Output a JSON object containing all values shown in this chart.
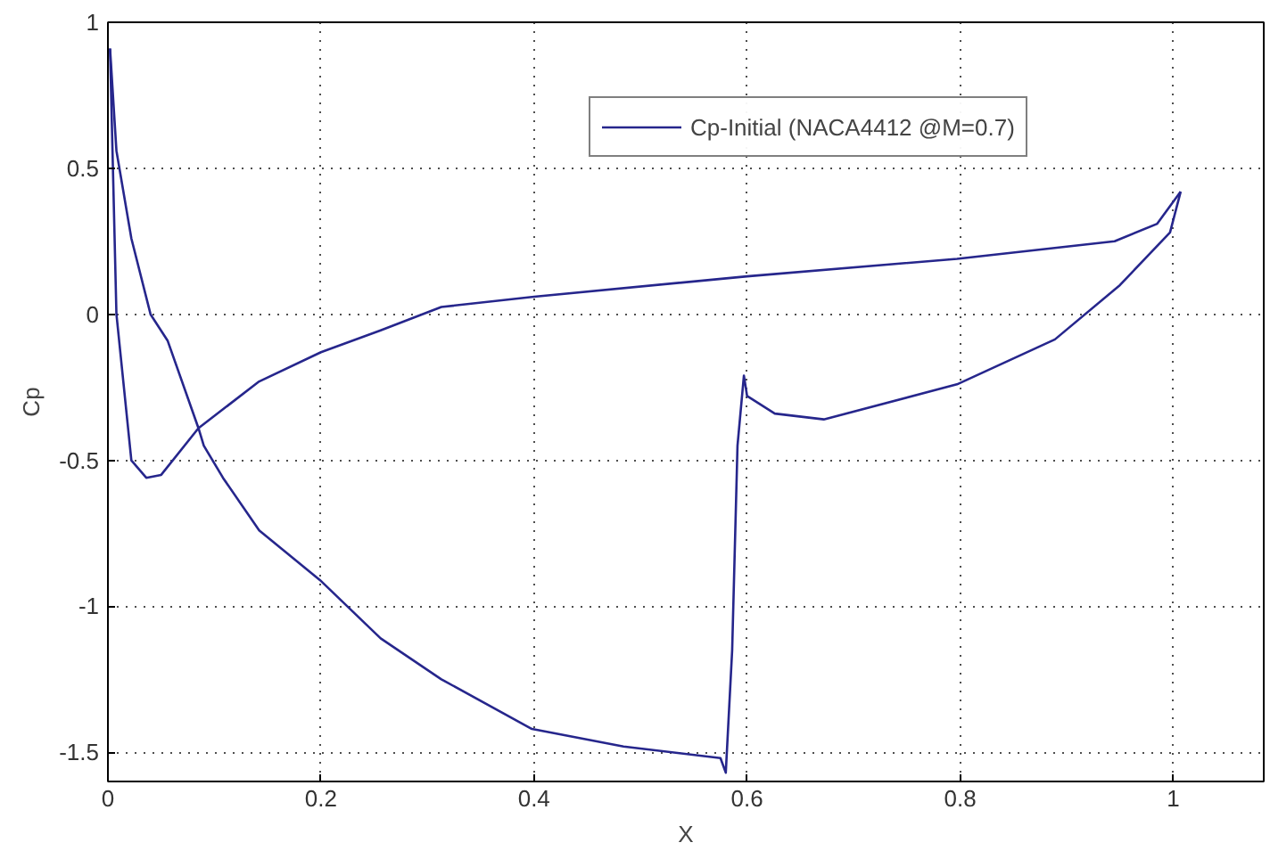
{
  "chart_data": {
    "type": "line",
    "xlabel": "X",
    "ylabel": "Cp",
    "xlim": [
      0,
      1.085
    ],
    "ylim": [
      -1.6,
      1
    ],
    "xticks": [
      0,
      0.2,
      0.4,
      0.6,
      0.8,
      1
    ],
    "yticks": [
      -1.5,
      -1,
      -0.5,
      0,
      0.5,
      1
    ],
    "grid": true,
    "legend": "top right",
    "marker": "none",
    "line_style": "solid",
    "series": [
      {
        "name": "Cp-Initial (NACA4412 @M=0.7)",
        "color": "#26268c",
        "x": [
          0.002,
          0.008,
          0.022,
          0.036,
          0.05,
          0.085,
          0.142,
          0.2,
          0.256,
          0.313,
          0.4,
          0.6,
          0.797,
          0.945,
          0.985,
          1.007
        ],
        "values": [
          0.91,
          0.0,
          -0.5,
          -0.56,
          -0.55,
          -0.39,
          -0.23,
          -0.13,
          -0.055,
          0.025,
          0.06,
          0.13,
          0.19,
          0.25,
          0.31,
          0.42
        ]
      },
      {
        "color": "#26268c",
        "x": [
          0.002,
          0.008,
          0.022,
          0.04,
          0.056,
          0.085,
          0.09,
          0.108,
          0.142,
          0.199,
          0.256,
          0.313,
          0.398,
          0.484,
          0.575,
          0.58,
          0.586,
          0.591,
          0.597,
          0.6,
          0.626,
          0.672,
          0.797,
          0.889,
          0.95,
          0.997,
          1.007
        ],
        "values": [
          0.91,
          0.56,
          0.26,
          0.0,
          -0.09,
          -0.39,
          -0.45,
          -0.56,
          -0.74,
          -0.91,
          -1.11,
          -1.25,
          -1.42,
          -1.48,
          -1.52,
          -1.57,
          -1.15,
          -0.45,
          -0.21,
          -0.28,
          -0.34,
          -0.36,
          -0.24,
          -0.086,
          0.1,
          0.28,
          0.42
        ]
      }
    ]
  }
}
